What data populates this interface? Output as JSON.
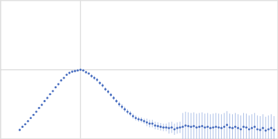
{
  "chart_data": {
    "type": "scatter",
    "grid": true,
    "tick_labels": false,
    "xlim": [
      0,
      6.02
    ],
    "ylim": [
      0,
      2.208
    ],
    "xticks": [
      1.732
    ],
    "yticks": [
      1.104
    ],
    "x": [
      0.42,
      0.48,
      0.54,
      0.6,
      0.66,
      0.72,
      0.78,
      0.84,
      0.9,
      0.96,
      1.02,
      1.08,
      1.14,
      1.2,
      1.26,
      1.32,
      1.38,
      1.44,
      1.5,
      1.56,
      1.62,
      1.68,
      1.74,
      1.8,
      1.86,
      1.92,
      1.98,
      2.04,
      2.1,
      2.16,
      2.22,
      2.28,
      2.34,
      2.4,
      2.46,
      2.52,
      2.58,
      2.64,
      2.7,
      2.76,
      2.82,
      2.88,
      2.94,
      3,
      3.06,
      3.12,
      3.18,
      3.24,
      3.3,
      3.36,
      3.42,
      3.48,
      3.54,
      3.6,
      3.66,
      3.72,
      3.78,
      3.84,
      3.9,
      3.96,
      4.02,
      4.08,
      4.14,
      4.2,
      4.26,
      4.32,
      4.38,
      4.44,
      4.5,
      4.56,
      4.62,
      4.68,
      4.74,
      4.8,
      4.86,
      4.92,
      4.98,
      5.04,
      5.1,
      5.16,
      5.22,
      5.28,
      5.34,
      5.4,
      5.46,
      5.52,
      5.58,
      5.64,
      5.7,
      5.76,
      5.82,
      5.88,
      5.94
    ],
    "series": [
      {
        "color": "#4a6fc0",
        "marker": "circle",
        "values": [
          0.14,
          0.19,
          0.23,
          0.28,
          0.33,
          0.38,
          0.43,
          0.49,
          0.54,
          0.6,
          0.65,
          0.71,
          0.76,
          0.82,
          0.87,
          0.93,
          0.97,
          1.02,
          1.05,
          1.07,
          1.08,
          1.09,
          1.1,
          1.09,
          1.06,
          1.04,
          1,
          0.97,
          0.94,
          0.89,
          0.85,
          0.79,
          0.75,
          0.7,
          0.65,
          0.6,
          0.55,
          0.51,
          0.47,
          0.43,
          0.4,
          0.36,
          0.33,
          0.31,
          0.3,
          0.28,
          0.26,
          0.24,
          0.24,
          0.21,
          0.2,
          0.19,
          0.18,
          0.18,
          0.17,
          0.18,
          0.15,
          0.17,
          0.18,
          0.19,
          0.21,
          0.2,
          0.19,
          0.2,
          0.18,
          0.19,
          0.2,
          0.18,
          0.19,
          0.17,
          0.18,
          0.19,
          0.18,
          0.17,
          0.19,
          0.22,
          0.18,
          0.17,
          0.19,
          0.17,
          0.15,
          0.19,
          0.18,
          0.15,
          0.17,
          0.19,
          0.15,
          0.14,
          0.17,
          0.13,
          0.15,
          0.17,
          0.14
        ],
        "errors": [
          0.01,
          0.01,
          0.01,
          0.01,
          0.01,
          0.01,
          0.01,
          0.01,
          0.01,
          0.01,
          0.01,
          0.01,
          0.01,
          0.01,
          0.01,
          0.01,
          0.01,
          0.01,
          0.02,
          0.02,
          0.02,
          0.02,
          0.02,
          0.02,
          0.02,
          0.02,
          0.03,
          0.03,
          0.03,
          0.03,
          0.03,
          0.03,
          0.03,
          0.03,
          0.03,
          0.03,
          0.04,
          0.04,
          0.04,
          0.04,
          0.04,
          0.04,
          0.04,
          0.04,
          0.04,
          0.04,
          0.06,
          0.06,
          0.06,
          0.06,
          0.06,
          0.06,
          0.06,
          0.06,
          0.09,
          0.09,
          0.09,
          0.09,
          0.09,
          0.22,
          0.22,
          0.22,
          0.22,
          0.22,
          0.22,
          0.22,
          0.22,
          0.22,
          0.22,
          0.22,
          0.22,
          0.22,
          0.22,
          0.22,
          0.22,
          0.22,
          0.22,
          0.22,
          0.22,
          0.22,
          0.22,
          0.22,
          0.22,
          0.22,
          0.22,
          0.22,
          0.22,
          0.22,
          0.22,
          0.22,
          0.22,
          0.22,
          0.22
        ]
      }
    ]
  }
}
